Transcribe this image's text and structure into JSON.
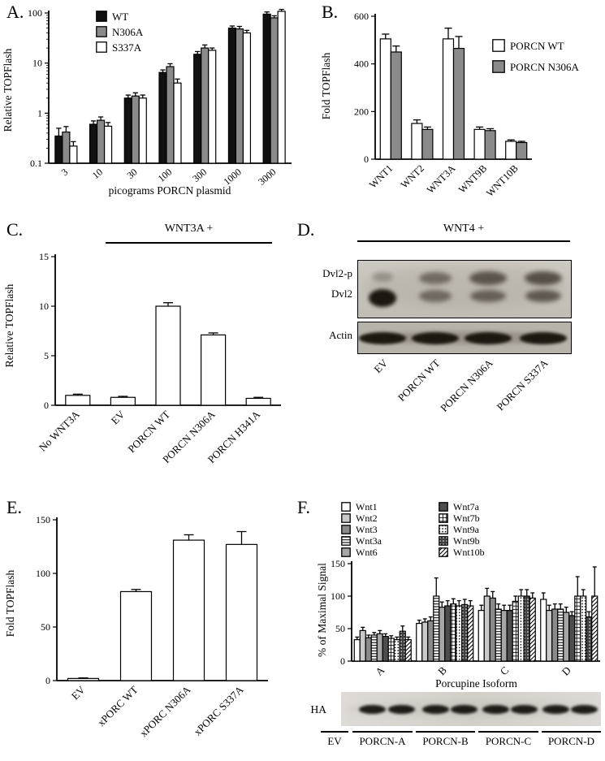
{
  "panels": {
    "A": "A.",
    "B": "B.",
    "C": "C.",
    "D": "D.",
    "E": "E.",
    "F": "F."
  },
  "headers": {
    "panel_c": "WNT3A +",
    "panel_d": "WNT4 +"
  },
  "blot_d": {
    "band_labels": [
      "Dvl2-p",
      "Dvl2",
      "Actin"
    ],
    "lanes": [
      "EV",
      "PORCN WT",
      "PORCN N306A",
      "PORCN S337A"
    ]
  },
  "blot_f": {
    "label": "HA",
    "lanes": [
      "EV",
      "PORCN-A",
      "PORCN-B",
      "PORCN-C",
      "PORCN-D"
    ]
  },
  "chart_data": [
    {
      "id": "panel-a",
      "type": "bar",
      "scale": "log",
      "ylabel": "Relative TOPFlash",
      "xlabel": "picograms PORCN plasmid",
      "ylim": [
        0.1,
        100
      ],
      "yticks": [
        0.1,
        1,
        10,
        100
      ],
      "categories": [
        "3",
        "10",
        "30",
        "100",
        "300",
        "1000",
        "3000"
      ],
      "legend_position": "top-left-inside",
      "series": [
        {
          "name": "WT",
          "fill": "black",
          "values": [
            0.35,
            0.6,
            2.0,
            6.5,
            15,
            50,
            95
          ],
          "errors": [
            0.15,
            0.1,
            0.3,
            0.8,
            2,
            5,
            10
          ]
        },
        {
          "name": "N306A",
          "fill": "gray50",
          "values": [
            0.42,
            0.72,
            2.2,
            8.5,
            20,
            48,
            80
          ],
          "errors": [
            0.12,
            0.12,
            0.35,
            1.2,
            3,
            6,
            8
          ]
        },
        {
          "name": "S337A",
          "fill": "white",
          "values": [
            0.22,
            0.55,
            2.0,
            4.0,
            18,
            40,
            108
          ],
          "errors": [
            0.05,
            0.1,
            0.3,
            0.8,
            2,
            5,
            10
          ]
        }
      ]
    },
    {
      "id": "panel-b",
      "type": "bar",
      "scale": "linear",
      "ylabel": "Fold TOPFlash",
      "xlabel": "",
      "ylim": [
        0,
        600
      ],
      "yticks": [
        0,
        200,
        400,
        600
      ],
      "categories": [
        "WNT1",
        "WNT2",
        "WNT3A",
        "WNT9B",
        "WNT10B"
      ],
      "legend_position": "right",
      "series": [
        {
          "name": "PORCN WT",
          "fill": "white",
          "values": [
            505,
            150,
            505,
            125,
            75
          ],
          "errors": [
            20,
            15,
            45,
            10,
            6
          ]
        },
        {
          "name": "PORCN N306A",
          "fill": "gray50",
          "values": [
            450,
            125,
            465,
            120,
            70
          ],
          "errors": [
            25,
            10,
            50,
            8,
            5
          ]
        }
      ]
    },
    {
      "id": "panel-c",
      "type": "bar",
      "scale": "linear",
      "ylabel": "Relative TOPFlash",
      "xlabel": "",
      "ylim": [
        0,
        15
      ],
      "yticks": [
        0,
        5,
        10,
        15
      ],
      "categories": [
        "No WNT3A",
        "EV",
        "PORCN WT",
        "PORCN N306A",
        "PORCN H341A"
      ],
      "legend_position": "none",
      "series": [
        {
          "name": "TOPFlash",
          "fill": "white",
          "values": [
            1.0,
            0.8,
            10.0,
            7.1,
            0.7
          ],
          "errors": [
            0.12,
            0.1,
            0.35,
            0.2,
            0.1
          ]
        }
      ]
    },
    {
      "id": "panel-e",
      "type": "bar",
      "scale": "linear",
      "ylabel": "Fold TOPFlash",
      "xlabel": "",
      "ylim": [
        0,
        150
      ],
      "yticks": [
        0,
        50,
        100,
        150
      ],
      "categories": [
        "EV",
        "xPORC WT",
        "xPORC N306A",
        "xPORC S337A"
      ],
      "legend_position": "none",
      "series": [
        {
          "name": "Fold TOPFlash",
          "fill": "white",
          "values": [
            2,
            83,
            131,
            127
          ],
          "errors": [
            0.5,
            2,
            5,
            12
          ]
        }
      ]
    },
    {
      "id": "panel-f",
      "type": "bar",
      "scale": "linear",
      "ylabel": "% of Maximal Signal",
      "xlabel": "Porcupine Isoform",
      "ylim": [
        0,
        150
      ],
      "yticks": [
        0,
        50,
        100,
        150
      ],
      "categories": [
        "A",
        "B",
        "C",
        "D"
      ],
      "legend_position": "top-two-columns",
      "series": [
        {
          "name": "Wnt1",
          "fill": "white",
          "values": [
            33,
            58,
            78,
            95
          ],
          "errors": [
            4,
            5,
            8,
            10
          ]
        },
        {
          "name": "Wnt2",
          "fill": "gray80",
          "values": [
            47,
            60,
            100,
            78
          ],
          "errors": [
            5,
            5,
            12,
            8
          ]
        },
        {
          "name": "Wnt3",
          "fill": "gray50",
          "values": [
            36,
            62,
            97,
            80
          ],
          "errors": [
            4,
            6,
            10,
            8
          ]
        },
        {
          "name": "Wnt3a",
          "fill": "hline",
          "values": [
            40,
            100,
            80,
            80
          ],
          "errors": [
            4,
            28,
            8,
            8
          ]
        },
        {
          "name": "Wnt6",
          "fill": "gray65",
          "values": [
            42,
            83,
            78,
            75
          ],
          "errors": [
            5,
            8,
            8,
            8
          ]
        },
        {
          "name": "Wnt7a",
          "fill": "gray30",
          "values": [
            38,
            85,
            78,
            70
          ],
          "errors": [
            4,
            8,
            8,
            6
          ]
        },
        {
          "name": "Wnt7b",
          "fill": "cross",
          "values": [
            35,
            88,
            92,
            100
          ],
          "errors": [
            4,
            8,
            8,
            30
          ]
        },
        {
          "name": "Wnt9a",
          "fill": "dot",
          "values": [
            33,
            85,
            100,
            100
          ],
          "errors": [
            4,
            8,
            10,
            10
          ]
        },
        {
          "name": "Wnt9b",
          "fill": "darkdot",
          "values": [
            46,
            87,
            100,
            68
          ],
          "errors": [
            8,
            8,
            10,
            8
          ]
        },
        {
          "name": "Wnt10b",
          "fill": "diag",
          "values": [
            33,
            85,
            97,
            100
          ],
          "errors": [
            4,
            8,
            8,
            45
          ]
        }
      ]
    }
  ]
}
